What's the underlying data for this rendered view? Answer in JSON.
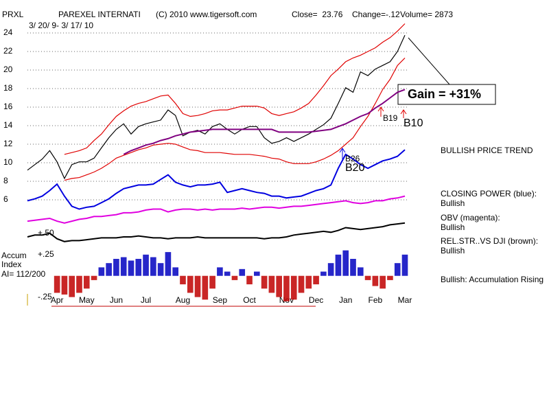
{
  "chart_data": [
    {
      "type": "line",
      "symbol": "PRXL",
      "title": "PAREXEL INTERNATI",
      "copyright": "(C) 2010 www.tigersoft.com",
      "close": "Close=  23.76",
      "change": "Change=-.12",
      "volume": "Volume= 2873",
      "subtitle": "3/ 20/ 9- 3/ 17/ 10",
      "categories": [
        null,
        null,
        null,
        null,
        "Apr",
        null,
        null,
        null,
        "May",
        null,
        null,
        null,
        "Jun",
        null,
        null,
        null,
        "Jul",
        null,
        null,
        null,
        null,
        "Aug",
        null,
        null,
        null,
        null,
        "Sep",
        null,
        null,
        null,
        "Oct",
        null,
        null,
        null,
        null,
        "Nov",
        null,
        null,
        null,
        "Dec",
        null,
        null,
        null,
        "Jan",
        null,
        null,
        null,
        "Feb",
        null,
        null,
        null,
        "Mar"
      ],
      "ylim": [
        1,
        25
      ],
      "yticks": [
        6,
        8,
        10,
        12,
        14,
        16,
        18,
        20,
        22,
        24
      ],
      "grid": true,
      "series": [
        {
          "color": "#000000",
          "values": [
            9.2,
            9.8,
            10.4,
            11.3,
            10.1,
            8.3,
            9.8,
            10.1,
            10.1,
            10.5,
            11.6,
            12.7,
            13.6,
            14.2,
            13.1,
            13.9,
            14.2,
            14.4,
            14.6,
            15.7,
            15.1,
            12.9,
            13.3,
            13.5,
            13.1,
            13.9,
            14.2,
            13.6,
            13.1,
            13.6,
            13.9,
            13.9,
            12.7,
            12.1,
            12.3,
            12.7,
            12.3,
            12.7,
            13.1,
            13.6,
            14.1,
            14.8,
            16.4,
            18.1,
            17.6,
            19.8,
            19.4,
            20.1,
            20.5,
            20.9,
            22.0,
            23.76
          ]
        },
        {
          "color": "#e00000",
          "values": [
            null,
            null,
            null,
            null,
            null,
            10.9,
            11.1,
            11.3,
            11.6,
            12.4,
            13.1,
            14.1,
            15.0,
            15.6,
            16.1,
            16.4,
            16.6,
            16.9,
            17.2,
            17.3,
            16.4,
            15.3,
            15.0,
            15.1,
            15.3,
            15.6,
            15.7,
            15.7,
            15.9,
            16.1,
            16.1,
            16.1,
            15.9,
            15.3,
            15.1,
            15.3,
            15.5,
            15.9,
            16.4,
            17.3,
            18.3,
            19.4,
            20.1,
            20.9,
            21.3,
            21.6,
            22.0,
            22.4,
            23.0,
            23.5,
            24.2,
            25.0
          ]
        },
        {
          "color": "#e00000",
          "values": [
            null,
            null,
            null,
            null,
            null,
            8.1,
            8.3,
            8.4,
            8.7,
            9.0,
            9.4,
            9.9,
            10.5,
            10.8,
            11.1,
            11.4,
            11.6,
            11.9,
            12.0,
            12.1,
            12.0,
            11.7,
            11.4,
            11.3,
            11.1,
            11.1,
            11.1,
            11.0,
            10.9,
            10.9,
            10.9,
            10.8,
            10.7,
            10.5,
            10.4,
            10.1,
            9.9,
            9.9,
            9.9,
            10.1,
            10.4,
            10.8,
            11.3,
            12.0,
            12.7,
            13.9,
            15.0,
            16.4,
            17.9,
            19.0,
            20.5,
            21.3
          ]
        },
        {
          "color": "#800080",
          "values": [
            null,
            null,
            null,
            null,
            null,
            null,
            null,
            null,
            null,
            null,
            null,
            null,
            null,
            10.9,
            11.3,
            11.6,
            11.9,
            12.1,
            12.4,
            12.6,
            12.9,
            13.1,
            13.3,
            13.4,
            13.5,
            13.6,
            13.6,
            13.6,
            13.6,
            13.6,
            13.6,
            13.6,
            13.6,
            13.6,
            13.3,
            13.3,
            13.3,
            13.3,
            13.3,
            13.4,
            13.5,
            13.6,
            13.9,
            14.2,
            14.6,
            15.0,
            15.3,
            15.9,
            16.4,
            17.0,
            17.6,
            17.9
          ]
        },
        {
          "name": "CLOSING POWER (blue):",
          "color": "#0000e0",
          "values": [
            5.9,
            6.1,
            6.4,
            7.0,
            7.7,
            6.4,
            5.3,
            5.0,
            5.2,
            5.3,
            5.7,
            6.1,
            6.7,
            7.2,
            7.4,
            7.6,
            7.6,
            7.7,
            8.2,
            8.7,
            7.9,
            7.6,
            7.4,
            7.6,
            7.6,
            7.7,
            7.9,
            6.8,
            7.0,
            7.2,
            7.0,
            6.8,
            6.7,
            6.4,
            6.4,
            6.2,
            6.3,
            6.4,
            6.7,
            7.0,
            7.2,
            7.6,
            9.4,
            10.9,
            10.4,
            9.8,
            9.4,
            9.8,
            10.2,
            10.4,
            10.7,
            11.4
          ]
        },
        {
          "name": "OBV (magenta):",
          "color": "#e000e0",
          "values": [
            3.7,
            3.8,
            3.9,
            4.0,
            3.7,
            3.5,
            3.7,
            3.9,
            4.0,
            4.2,
            4.2,
            4.3,
            4.4,
            4.6,
            4.6,
            4.7,
            4.9,
            5.0,
            5.0,
            4.7,
            4.9,
            5.0,
            5.0,
            4.9,
            5.0,
            4.9,
            5.0,
            5.0,
            5.0,
            5.1,
            5.0,
            5.1,
            5.2,
            5.2,
            5.1,
            5.2,
            5.3,
            5.3,
            5.4,
            5.5,
            5.6,
            5.7,
            5.8,
            5.9,
            5.7,
            5.6,
            5.7,
            5.9,
            5.9,
            6.1,
            6.2,
            6.4
          ]
        },
        {
          "name": "REL.STR..VS DJI (brown):",
          "color": "#000000",
          "values": [
            2.0,
            2.2,
            2.2,
            2.4,
            1.8,
            1.5,
            1.6,
            1.6,
            1.7,
            1.8,
            1.9,
            1.9,
            1.9,
            2.0,
            2.0,
            2.1,
            2.0,
            1.9,
            1.9,
            1.8,
            1.9,
            1.9,
            1.9,
            2.0,
            1.9,
            1.9,
            1.9,
            1.9,
            1.9,
            1.9,
            1.9,
            1.9,
            1.8,
            1.9,
            1.9,
            2.0,
            2.2,
            2.3,
            2.4,
            2.5,
            2.6,
            2.5,
            2.7,
            3.0,
            2.9,
            2.8,
            2.9,
            3.0,
            3.1,
            3.3,
            3.4,
            3.5
          ]
        }
      ],
      "annotations": [
        "Gain = +31%",
        "B19",
        "B10",
        "B26",
        "B20",
        "BULLISH PRICE TREND",
        "Bullish",
        "Bullish",
        "Bullish",
        "Bullish: Accumulation Rising",
        "Accum",
        "Index",
        "AI= 112/200"
      ]
    },
    {
      "type": "bar",
      "ylim": [
        -0.35,
        0.58
      ],
      "yticks": [
        {
          "value": 0.5,
          "label": "+.50"
        },
        {
          "value": 0.25,
          "label": "+.25"
        },
        {
          "value": -0.25,
          "label": "-.25"
        }
      ],
      "positive_color": "#0000c0",
      "negative_color": "#c00000",
      "values": [
        null,
        null,
        null,
        null,
        -0.2,
        -0.22,
        -0.25,
        -0.2,
        -0.15,
        -0.05,
        0.1,
        0.15,
        0.2,
        0.22,
        0.18,
        0.2,
        0.25,
        0.22,
        0.15,
        0.28,
        0.1,
        -0.1,
        -0.2,
        -0.25,
        -0.28,
        -0.15,
        0.1,
        0.05,
        -0.05,
        0.08,
        -0.1,
        0.05,
        -0.15,
        -0.2,
        -0.25,
        -0.3,
        -0.28,
        -0.2,
        -0.15,
        -0.1,
        0.05,
        0.15,
        0.25,
        0.3,
        0.2,
        0.1,
        -0.05,
        -0.12,
        -0.15,
        -0.05,
        0.15,
        0.25
      ]
    }
  ]
}
